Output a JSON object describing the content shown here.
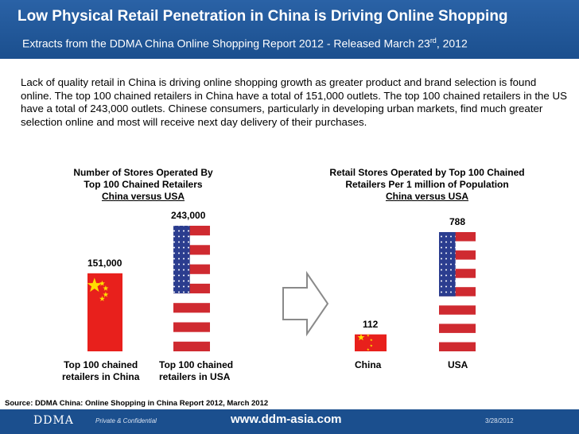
{
  "header": {
    "title": "Low Physical Retail Penetration  in China is Driving Online Shopping",
    "subtitle_main": "Extracts from the DDMA China Online Shopping Report 2012  - Released March 23",
    "subtitle_sup": "rd",
    "subtitle_tail": ", 2012"
  },
  "intro": "Lack of quality retail in China is driving online shopping growth as greater product and brand selection is found online. The top 100 chained retailers in China have a total of 151,000 outlets. The top 100 chained retailers in the US have a total of 243,000 outlets. Chinese consumers, particularly in developing urban markets, find much greater selection online and most will receive next day delivery of their purchases.",
  "chart_data": [
    {
      "type": "bar",
      "title_lines": [
        "Number of Stores Operated By",
        "Top 100 Chained Retailers"
      ],
      "title_underlined": "China versus USA ",
      "categories": [
        "Top 100 chained retailers in China",
        "Top 100 chained retailers in USA"
      ],
      "category_lines": [
        [
          "Top 100 chained",
          "retailers in China"
        ],
        [
          "Top 100 chained",
          "retailers in USA"
        ]
      ],
      "values": [
        151000,
        243000
      ],
      "data_labels": [
        "151,000",
        "243,000"
      ]
    },
    {
      "type": "bar",
      "title_lines": [
        "Retail Stores Operated by Top 100 Chained",
        "Retailers Per 1 million of  Population"
      ],
      "title_underlined": "China versus USA ",
      "categories": [
        "China",
        "USA"
      ],
      "values": [
        112,
        788
      ],
      "data_labels": [
        "112",
        "788"
      ]
    }
  ],
  "colors": {
    "header_blue": "#1b4f8e",
    "china_red": "#e8201c",
    "china_star": "#ffde00",
    "usa_red": "#cf2a30",
    "usa_blue": "#2b3d8f",
    "arrow_gray": "#8a8a8a"
  },
  "source": "Source: DDMA China: Online Shopping in China Report 2012, March 2012",
  "footer": {
    "logo": "DDMA",
    "confidential": "Private & Confidential",
    "url": "www.ddm-asia.com",
    "date": "3/28/2012"
  }
}
